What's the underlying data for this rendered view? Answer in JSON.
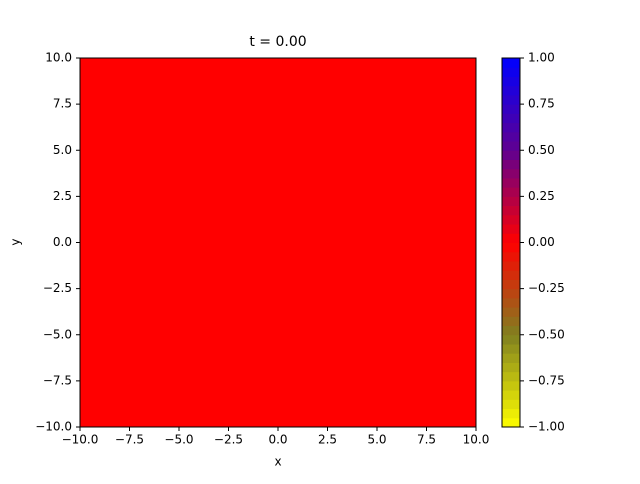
{
  "chart_data": {
    "type": "heatmap",
    "title": "t = 0.00",
    "x_label": "x",
    "y_label": "y",
    "xlim": [
      -10,
      10
    ],
    "ylim": [
      -10,
      10
    ],
    "xticks": [
      {
        "value": -10,
        "label": "−10.0"
      },
      {
        "value": -7.5,
        "label": "−7.5"
      },
      {
        "value": -5,
        "label": "−5.0"
      },
      {
        "value": -2.5,
        "label": "−2.5"
      },
      {
        "value": 0,
        "label": "0.0"
      },
      2.5,
      {
        "value": 5,
        "label": "5.0"
      },
      7.5,
      {
        "value": 10,
        "label": "10.0"
      }
    ],
    "yticks": [
      {
        "value": -10,
        "label": "−10.0"
      },
      {
        "value": -7.5,
        "label": "−7.5"
      },
      {
        "value": -5,
        "label": "−5.0"
      },
      {
        "value": -2.5,
        "label": "−2.5"
      },
      {
        "value": 0,
        "label": "0.0"
      },
      2.5,
      {
        "value": 5,
        "label": "5.0"
      },
      7.5,
      {
        "value": 10,
        "label": "10.0"
      }
    ],
    "colorbar_lim": [
      -1,
      1
    ],
    "colorbar_ticks": [
      {
        "value": -1,
        "label": "−1.00"
      },
      {
        "value": -0.75,
        "label": "−0.75"
      },
      {
        "value": -0.5,
        "label": "−0.50"
      },
      {
        "value": -0.25,
        "label": "−0.25"
      },
      {
        "value": 0,
        "label": "0.00"
      },
      {
        "value": 0.25,
        "label": "0.25"
      },
      {
        "value": 0.5,
        "label": "0.50"
      },
      {
        "value": 0.75,
        "label": "0.75"
      },
      {
        "value": 1,
        "label": "1.00"
      }
    ],
    "colormap": [
      "#ffff00",
      "#808020",
      "#ff0000",
      "#600090",
      "#0000ff"
    ],
    "colorbar_levels": 40
  }
}
